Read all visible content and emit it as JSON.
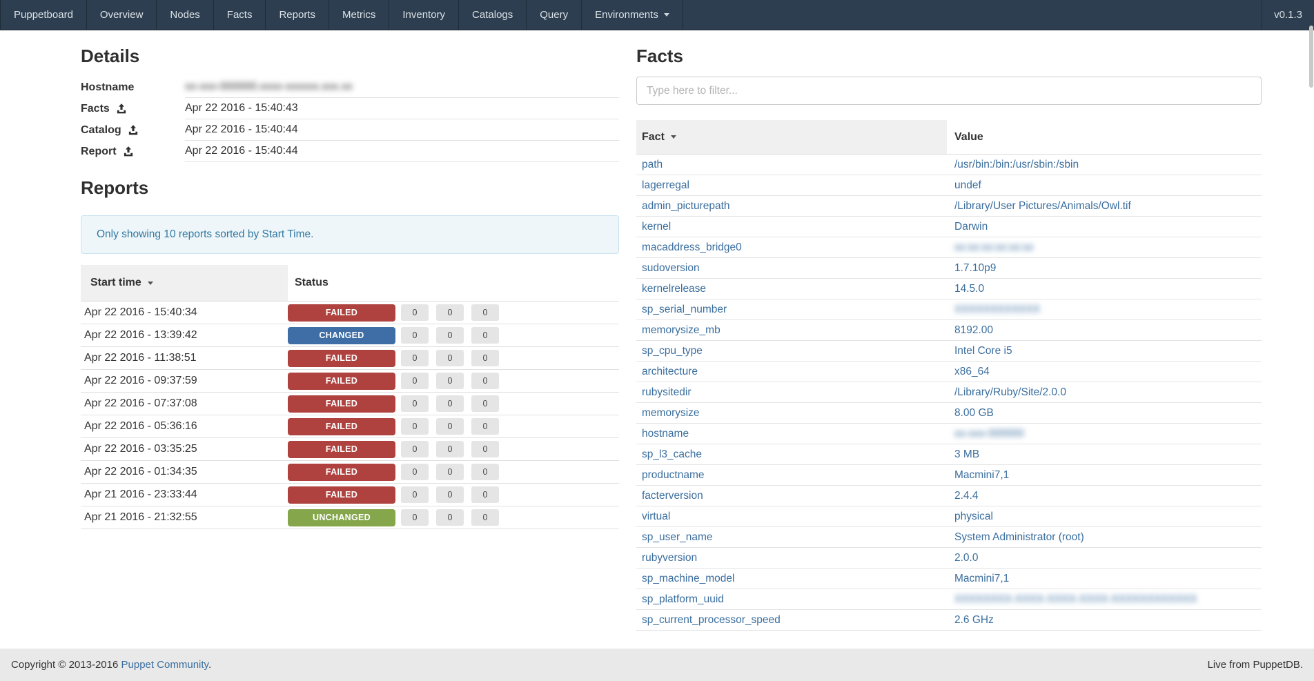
{
  "navbar": {
    "brand": "Puppetboard",
    "items": [
      "Overview",
      "Nodes",
      "Facts",
      "Reports",
      "Metrics",
      "Inventory",
      "Catalogs",
      "Query"
    ],
    "dropdown_label": "Environments",
    "version": "v0.1.3"
  },
  "details": {
    "title": "Details",
    "rows": [
      {
        "label": "Hostname",
        "icon": false,
        "value": "xx-xxx-000000.xxxx-xxxxxx.xxx.xx",
        "blurred": true
      },
      {
        "label": "Facts",
        "icon": true,
        "value": "Apr 22 2016 - 15:40:43",
        "blurred": false
      },
      {
        "label": "Catalog",
        "icon": true,
        "value": "Apr 22 2016 - 15:40:44",
        "blurred": false
      },
      {
        "label": "Report",
        "icon": true,
        "value": "Apr 22 2016 - 15:40:44",
        "blurred": false
      }
    ]
  },
  "reports": {
    "title": "Reports",
    "alert": "Only showing 10 reports sorted by Start Time.",
    "columns": {
      "start_time": "Start time",
      "status": "Status"
    },
    "rows": [
      {
        "time": "Apr 22 2016 - 15:40:34",
        "status": "FAILED",
        "counts": [
          "0",
          "0",
          "0"
        ]
      },
      {
        "time": "Apr 22 2016 - 13:39:42",
        "status": "CHANGED",
        "counts": [
          "0",
          "0",
          "0"
        ]
      },
      {
        "time": "Apr 22 2016 - 11:38:51",
        "status": "FAILED",
        "counts": [
          "0",
          "0",
          "0"
        ]
      },
      {
        "time": "Apr 22 2016 - 09:37:59",
        "status": "FAILED",
        "counts": [
          "0",
          "0",
          "0"
        ]
      },
      {
        "time": "Apr 22 2016 - 07:37:08",
        "status": "FAILED",
        "counts": [
          "0",
          "0",
          "0"
        ]
      },
      {
        "time": "Apr 22 2016 - 05:36:16",
        "status": "FAILED",
        "counts": [
          "0",
          "0",
          "0"
        ]
      },
      {
        "time": "Apr 22 2016 - 03:35:25",
        "status": "FAILED",
        "counts": [
          "0",
          "0",
          "0"
        ]
      },
      {
        "time": "Apr 22 2016 - 01:34:35",
        "status": "FAILED",
        "counts": [
          "0",
          "0",
          "0"
        ]
      },
      {
        "time": "Apr 21 2016 - 23:33:44",
        "status": "FAILED",
        "counts": [
          "0",
          "0",
          "0"
        ]
      },
      {
        "time": "Apr 21 2016 - 21:32:55",
        "status": "UNCHANGED",
        "counts": [
          "0",
          "0",
          "0"
        ]
      }
    ]
  },
  "facts": {
    "title": "Facts",
    "filter_placeholder": "Type here to filter...",
    "columns": {
      "fact": "Fact",
      "value": "Value"
    },
    "rows": [
      {
        "fact": "path",
        "value": "/usr/bin:/bin:/usr/sbin:/sbin",
        "blurred": false
      },
      {
        "fact": "lagerregal",
        "value": "undef",
        "blurred": false
      },
      {
        "fact": "admin_picturepath",
        "value": "/Library/User Pictures/Animals/Owl.tif",
        "blurred": false
      },
      {
        "fact": "kernel",
        "value": "Darwin",
        "blurred": false
      },
      {
        "fact": "macaddress_bridge0",
        "value": "xx:xx:xx:xx:xx:xx",
        "blurred": true
      },
      {
        "fact": "sudoversion",
        "value": "1.7.10p9",
        "blurred": false
      },
      {
        "fact": "kernelrelease",
        "value": "14.5.0",
        "blurred": false
      },
      {
        "fact": "sp_serial_number",
        "value": "XXXXXXXXXXXX",
        "blurred": true
      },
      {
        "fact": "memorysize_mb",
        "value": "8192.00",
        "blurred": false
      },
      {
        "fact": "sp_cpu_type",
        "value": "Intel Core i5",
        "blurred": false
      },
      {
        "fact": "architecture",
        "value": "x86_64",
        "blurred": false
      },
      {
        "fact": "rubysitedir",
        "value": "/Library/Ruby/Site/2.0.0",
        "blurred": false
      },
      {
        "fact": "memorysize",
        "value": "8.00 GB",
        "blurred": false
      },
      {
        "fact": "hostname",
        "value": "xx-xxx-000000",
        "blurred": true
      },
      {
        "fact": "sp_l3_cache",
        "value": "3 MB",
        "blurred": false
      },
      {
        "fact": "productname",
        "value": "Macmini7,1",
        "blurred": false
      },
      {
        "fact": "facterversion",
        "value": "2.4.4",
        "blurred": false
      },
      {
        "fact": "virtual",
        "value": "physical",
        "blurred": false
      },
      {
        "fact": "sp_user_name",
        "value": "System Administrator (root)",
        "blurred": false
      },
      {
        "fact": "rubyversion",
        "value": "2.0.0",
        "blurred": false
      },
      {
        "fact": "sp_machine_model",
        "value": "Macmini7,1",
        "blurred": false
      },
      {
        "fact": "sp_platform_uuid",
        "value": "XXXXXXXX-XXXX-XXXX-XXXX-XXXXXXXXXXXX",
        "blurred": true
      },
      {
        "fact": "sp_current_processor_speed",
        "value": "2.6 GHz",
        "blurred": false
      }
    ]
  },
  "footer": {
    "copyright_prefix": "Copyright © 2013-2016 ",
    "copyright_link": "Puppet Community",
    "copyright_suffix": ".",
    "right_text": "Live from PuppetDB."
  },
  "colors": {
    "navbar_bg": "#2c3e50",
    "link": "#3a6e9e",
    "alert_text": "#3178a0",
    "alert_bg": "#eef6fa",
    "alert_border": "#c8e2ee",
    "status": {
      "FAILED": "#af423e",
      "CHANGED": "#3e6ea5",
      "UNCHANGED": "#85a64b"
    }
  }
}
